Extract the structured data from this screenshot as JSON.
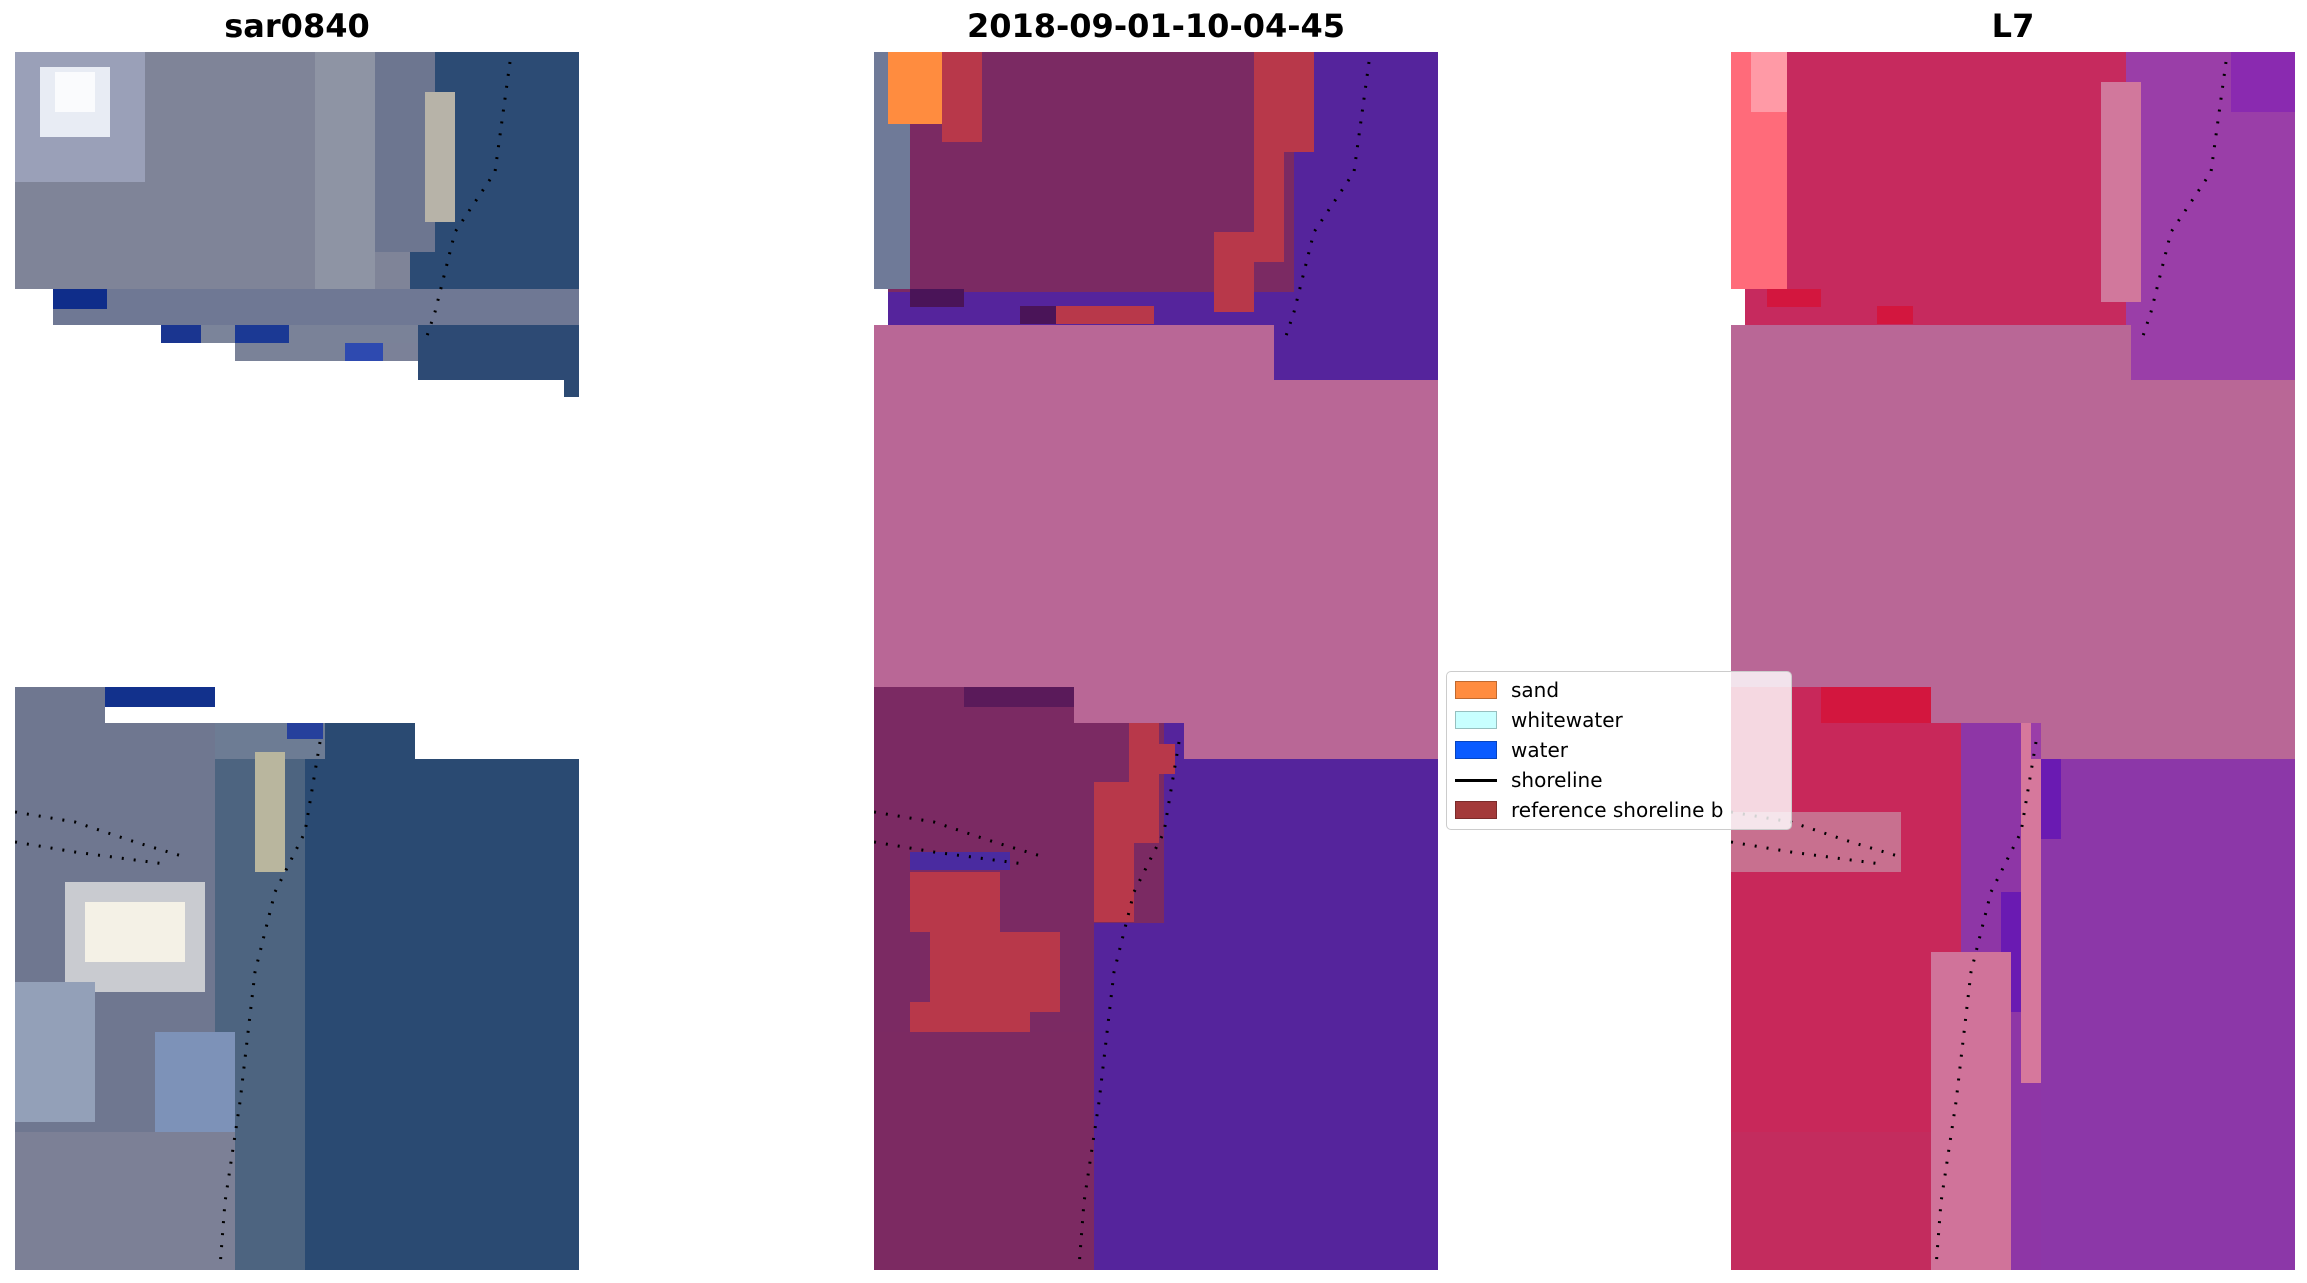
{
  "panels": [
    {
      "title": "sar0840"
    },
    {
      "title": "2018-09-01-10-04-45"
    },
    {
      "title": "L7"
    }
  ],
  "legend": {
    "items": [
      {
        "label": "sand",
        "color": "#ff8c3f",
        "kind": "patch"
      },
      {
        "label": "whitewater",
        "color": "#c8ffff",
        "kind": "patch"
      },
      {
        "label": "water",
        "color": "#0a5bff",
        "kind": "patch"
      },
      {
        "label": "shoreline",
        "color": "#000000",
        "kind": "line"
      },
      {
        "label": "reference shoreline b",
        "color": "#a33a3a",
        "kind": "patch"
      }
    ]
  },
  "colors": {
    "rgb_land": "#7b8195",
    "rgb_sea": "#2a4a72",
    "class_land": "#7a2a62",
    "class_sea": "#54239a",
    "class_band": "#b96796",
    "class_sand": "#ff8c3f",
    "class_buffer": "#b8384a",
    "ndwi_land": "#c82a5c",
    "ndwi_sea": "#8a3aa8"
  }
}
